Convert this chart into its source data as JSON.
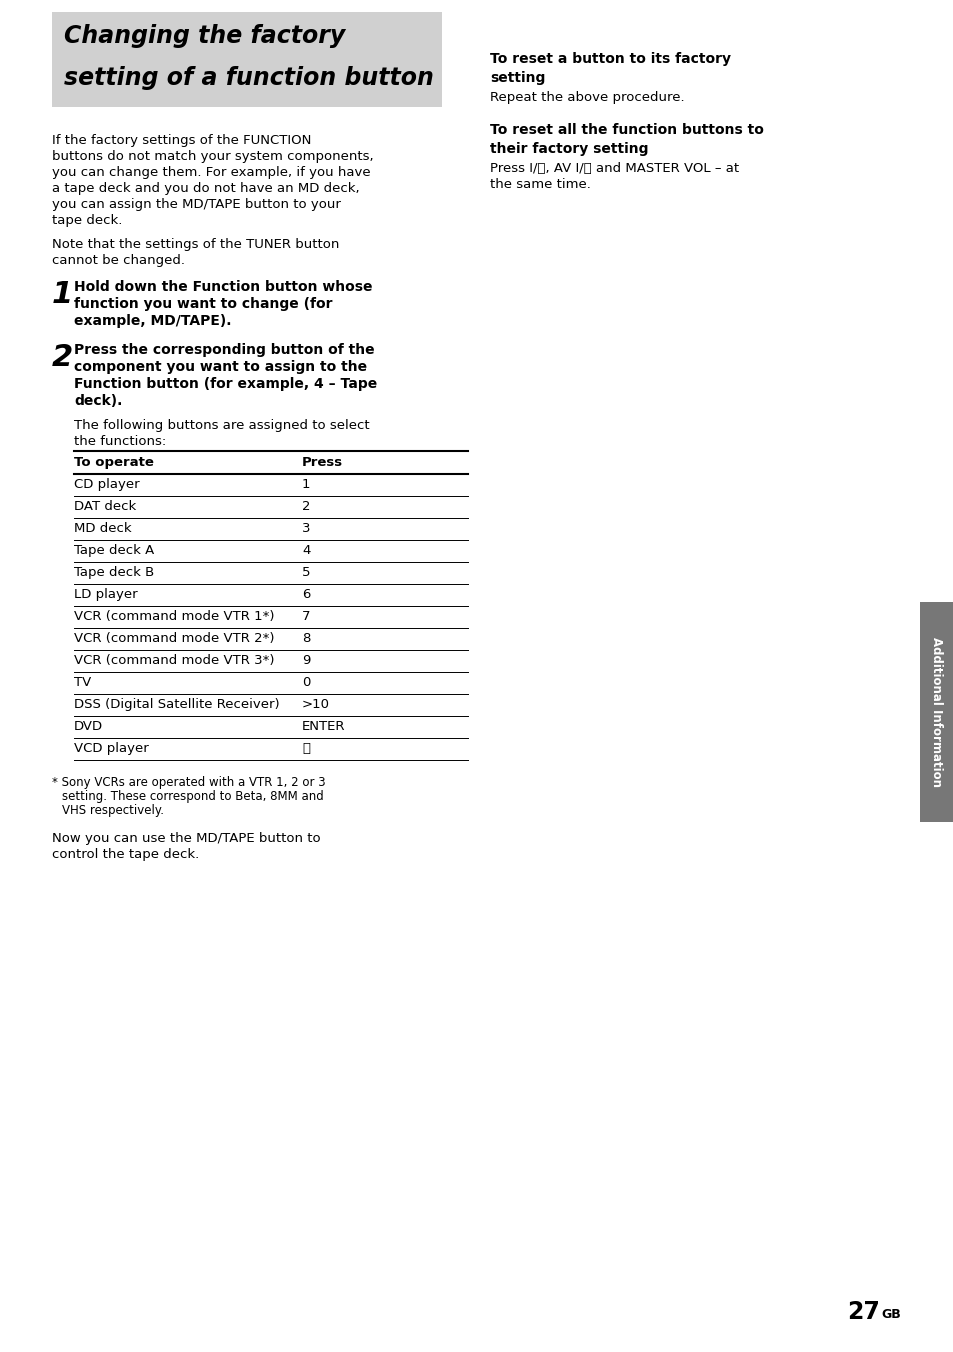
{
  "title_line1": "Changing the factory",
  "title_line2": "setting of a function button",
  "title_bg_color": "#d0d0d0",
  "page_bg": "#ffffff",
  "table_header": [
    "To operate",
    "Press"
  ],
  "table_rows": [
    [
      "CD player",
      "1"
    ],
    [
      "DAT deck",
      "2"
    ],
    [
      "MD deck",
      "3"
    ],
    [
      "Tape deck A",
      "4"
    ],
    [
      "Tape deck B",
      "5"
    ],
    [
      "LD player",
      "6"
    ],
    [
      "VCR (command mode VTR 1*)",
      "7"
    ],
    [
      "VCR (command mode VTR 2*)",
      "8"
    ],
    [
      "VCR (command mode VTR 3*)",
      "9"
    ],
    [
      "TV",
      "0"
    ],
    [
      "DSS (Digital Satellite Receiver)",
      ">10"
    ],
    [
      "DVD",
      "ENTER"
    ],
    [
      "VCD player",
      "⏮"
    ]
  ],
  "sidebar_text": "Additional Information",
  "page_number": "27",
  "page_suffix": "GB"
}
